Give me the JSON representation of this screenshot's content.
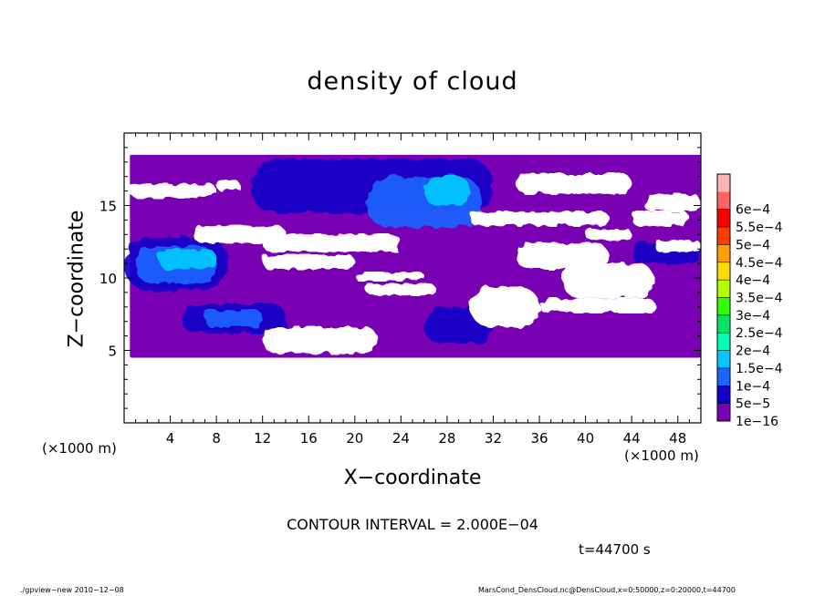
{
  "chart_data": {
    "type": "heatmap",
    "title": "density of cloud",
    "xlabel": "X−coordinate",
    "ylabel": "Z−coordinate",
    "x_unit_label": "(×1000 m)",
    "xlim": [
      0,
      50
    ],
    "ylim": [
      0,
      20
    ],
    "x_ticks": [
      4,
      8,
      12,
      16,
      20,
      24,
      28,
      32,
      36,
      40,
      44,
      48
    ],
    "y_ticks": [
      5,
      10,
      15
    ],
    "colorbar": {
      "levels": [
        "1e−16",
        "5e−5",
        "1e−4",
        "1.5e−4",
        "2e−4",
        "2.5e−4",
        "3e−4",
        "3.5e−4",
        "4e−4",
        "4.5e−4",
        "5e−4",
        "5.5e−4",
        "6e−4"
      ],
      "colors": [
        "#7a00b4",
        "#1400c8",
        "#1e64ff",
        "#00c8ff",
        "#00ffb4",
        "#00e664",
        "#32ff00",
        "#b4ff00",
        "#ffdc00",
        "#ffa000",
        "#ff3c00",
        "#ff0000",
        "#ff6464",
        "#ffb4b4"
      ]
    },
    "regions": [
      {
        "level": 0,
        "x": [
          0.5,
          50
        ],
        "z": [
          4.5,
          18.5
        ]
      },
      {
        "level": 1,
        "x": [
          11,
          32
        ],
        "z": [
          14.5,
          18.2
        ]
      },
      {
        "level": 1,
        "x": [
          0,
          9
        ],
        "z": [
          9.2,
          12.8
        ]
      },
      {
        "level": 1,
        "x": [
          5,
          14
        ],
        "z": [
          6.2,
          8.2
        ]
      },
      {
        "level": 1,
        "x": [
          26,
          32
        ],
        "z": [
          5.5,
          8
        ]
      },
      {
        "level": 1,
        "x": [
          44,
          50
        ],
        "z": [
          11,
          12.5
        ]
      },
      {
        "level": 2,
        "x": [
          21,
          31
        ],
        "z": [
          13.5,
          17
        ]
      },
      {
        "level": 2,
        "x": [
          1,
          8
        ],
        "z": [
          9.6,
          12.2
        ]
      },
      {
        "level": 2,
        "x": [
          7,
          12
        ],
        "z": [
          6.6,
          7.8
        ]
      },
      {
        "level": 3,
        "x": [
          3,
          8
        ],
        "z": [
          10.6,
          12
        ]
      },
      {
        "level": 3,
        "x": [
          26,
          30
        ],
        "z": [
          15,
          17
        ]
      }
    ]
  },
  "annotations": {
    "contour_interval": "CONTOUR INTERVAL = 2.000E−04",
    "time": "t=44700 s",
    "footer_left": "./gpview−new   2010−12−08",
    "footer_right": "MarsCond_DensCloud.nc@DensCloud,x=0:50000,z=0:20000,t=44700"
  }
}
